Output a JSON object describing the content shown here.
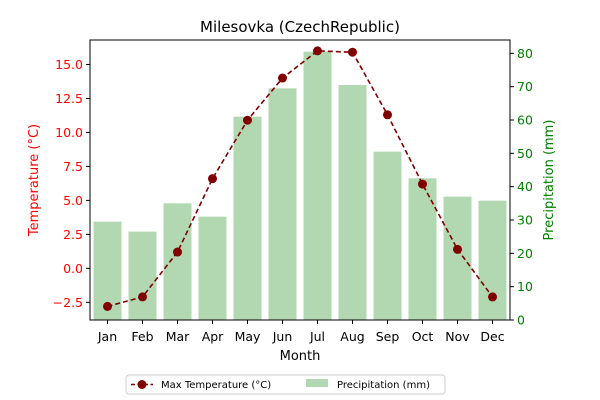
{
  "chart_data": {
    "type": "bar+line",
    "title": "Milesovka (CzechRepublic)",
    "xlabel": "Month",
    "categories": [
      "Jan",
      "Feb",
      "Mar",
      "Apr",
      "May",
      "Jun",
      "Jul",
      "Aug",
      "Sep",
      "Oct",
      "Nov",
      "Dec"
    ],
    "temperature": {
      "name": "Max Temperature (°C)",
      "axis_label": "Temperature (°C)",
      "values": [
        -2.8,
        -2.1,
        1.2,
        6.6,
        10.9,
        14.0,
        16.0,
        15.9,
        11.3,
        6.2,
        1.4,
        -2.1
      ],
      "ylim": [
        -3.8,
        16.8
      ],
      "ticks": [
        -2.5,
        0.0,
        2.5,
        5.0,
        7.5,
        10.0,
        12.5,
        15.0
      ],
      "tick_labels": [
        "−2.5",
        "0.0",
        "2.5",
        "5.0",
        "7.5",
        "10.0",
        "12.5",
        "15.0"
      ],
      "color": "#ff0000",
      "line_color": "#800000"
    },
    "precipitation": {
      "name": "Precipitation (mm)",
      "axis_label": "Precipitation (mm)",
      "values": [
        29.5,
        26.5,
        35,
        31,
        61,
        69.5,
        80.5,
        70.5,
        50.5,
        42.5,
        37,
        35.8
      ],
      "ylim": [
        0,
        84
      ],
      "ticks": [
        0,
        10,
        20,
        30,
        40,
        50,
        60,
        70,
        80
      ],
      "tick_labels": [
        "0",
        "10",
        "20",
        "30",
        "40",
        "50",
        "60",
        "70",
        "80"
      ],
      "color": "#008000",
      "bar_color": "#b1d8b1"
    },
    "legend": {
      "placement": "bottom-center",
      "entries": [
        "Max Temperature (°C)",
        "Precipitation (mm)"
      ]
    },
    "grid": false
  }
}
